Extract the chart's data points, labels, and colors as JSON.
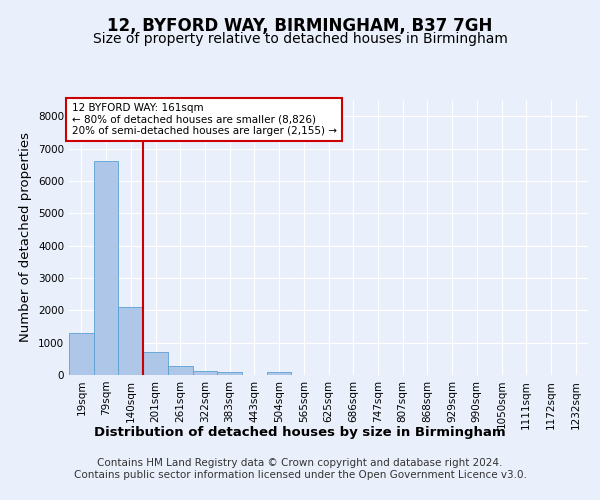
{
  "title": "12, BYFORD WAY, BIRMINGHAM, B37 7GH",
  "subtitle": "Size of property relative to detached houses in Birmingham",
  "xlabel": "Distribution of detached houses by size in Birmingham",
  "ylabel": "Number of detached properties",
  "footer_line1": "Contains HM Land Registry data © Crown copyright and database right 2024.",
  "footer_line2": "Contains public sector information licensed under the Open Government Licence v3.0.",
  "categories": [
    "19sqm",
    "79sqm",
    "140sqm",
    "201sqm",
    "261sqm",
    "322sqm",
    "383sqm",
    "443sqm",
    "504sqm",
    "565sqm",
    "625sqm",
    "686sqm",
    "747sqm",
    "807sqm",
    "868sqm",
    "929sqm",
    "990sqm",
    "1050sqm",
    "1111sqm",
    "1172sqm",
    "1232sqm"
  ],
  "values": [
    1300,
    6600,
    2100,
    700,
    290,
    120,
    80,
    0,
    90,
    0,
    0,
    0,
    0,
    0,
    0,
    0,
    0,
    0,
    0,
    0,
    0
  ],
  "bar_color": "#aec6e8",
  "bar_edge_color": "#5a9fd4",
  "vline_x": 2.5,
  "vline_color": "#cc0000",
  "annotation_text": "12 BYFORD WAY: 161sqm\n← 80% of detached houses are smaller (8,826)\n20% of semi-detached houses are larger (2,155) →",
  "annotation_box_color": "#ffffff",
  "annotation_box_edge_color": "#cc0000",
  "ylim": [
    0,
    8500
  ],
  "yticks": [
    0,
    1000,
    2000,
    3000,
    4000,
    5000,
    6000,
    7000,
    8000
  ],
  "background_color": "#eaf0fb",
  "plot_bg_color": "#eaf0fb",
  "grid_color": "#ffffff",
  "title_fontsize": 12,
  "subtitle_fontsize": 10,
  "axis_label_fontsize": 9.5,
  "tick_fontsize": 7.5,
  "footer_fontsize": 7.5
}
